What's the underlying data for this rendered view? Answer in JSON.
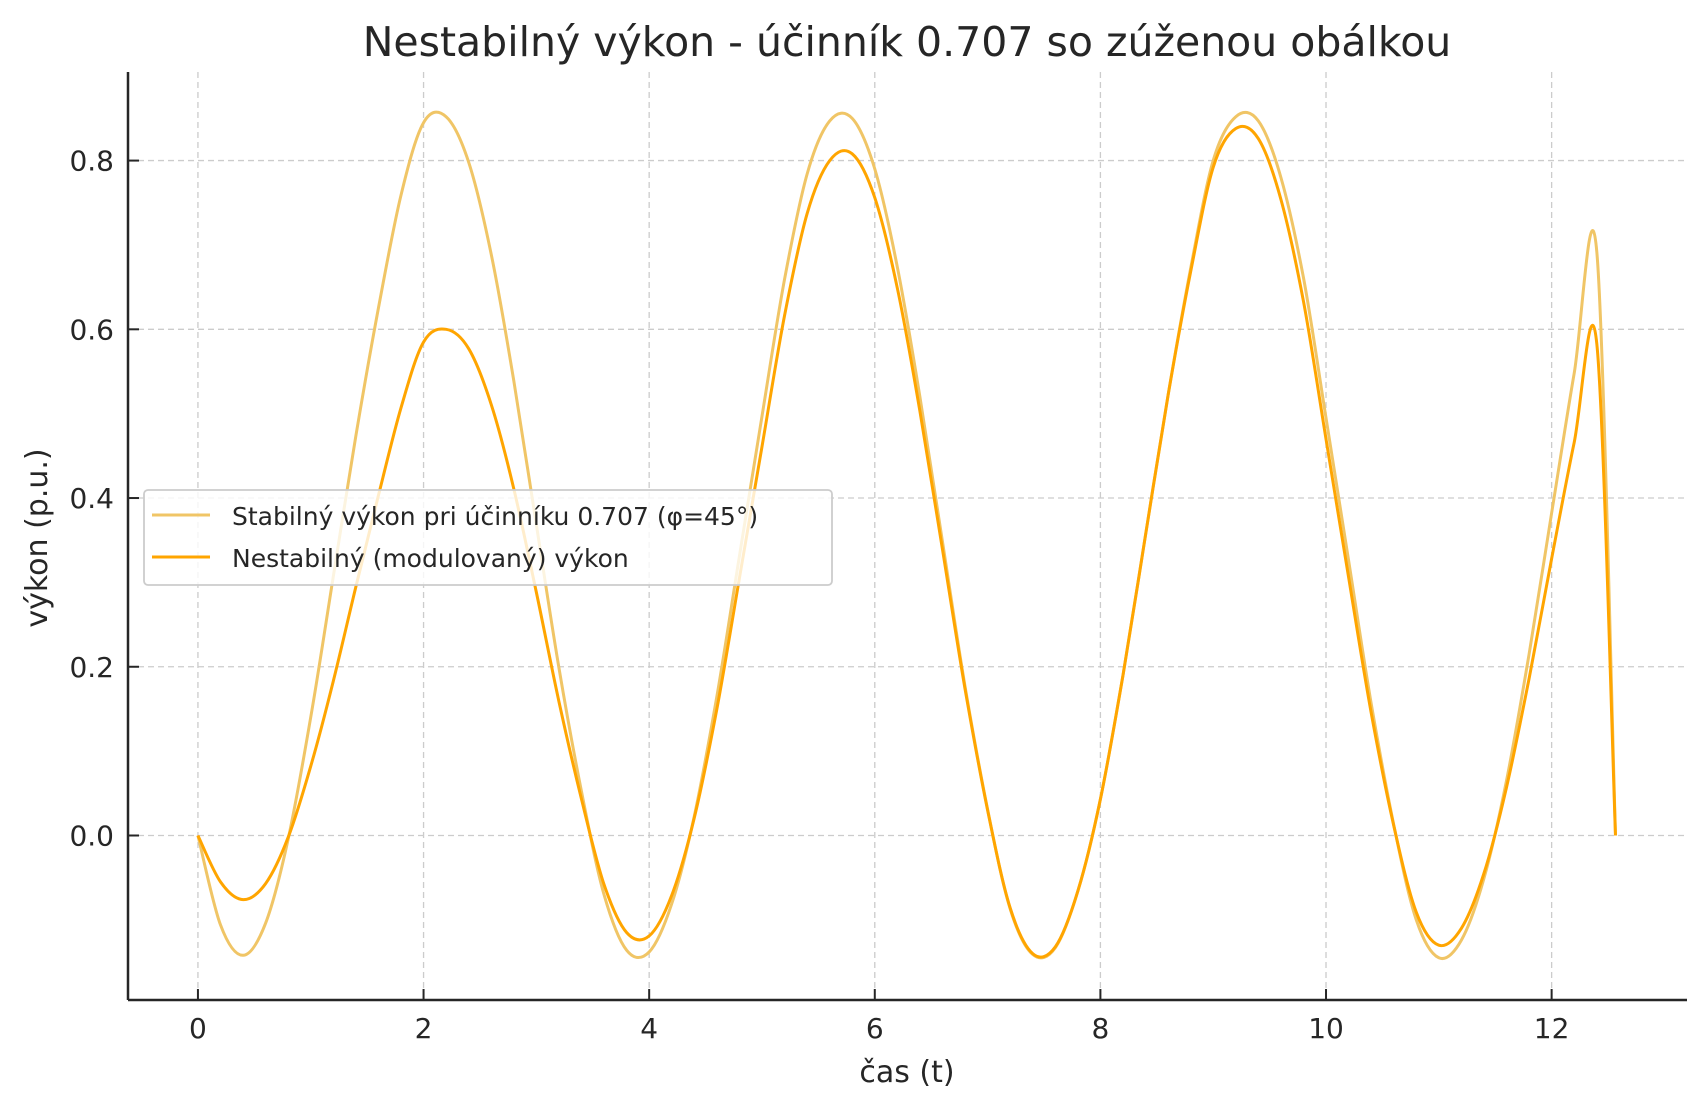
{
  "chart_data": {
    "type": "line",
    "title": "Nestabilný výkon - účinník 0.707 so zúženou obálkou",
    "xlabel": "čas (t)",
    "ylabel": "výkon (p.u.)",
    "xlim": [
      -0.62,
      13.2
    ],
    "ylim": [
      -0.195,
      0.905
    ],
    "xticks": [
      0,
      2,
      4,
      6,
      8,
      10,
      12
    ],
    "xtick_labels": [
      "0",
      "2",
      "4",
      "6",
      "8",
      "10",
      "12"
    ],
    "yticks": [
      0.0,
      0.2,
      0.4,
      0.6,
      0.8
    ],
    "ytick_labels": [
      "0.0",
      "0.2",
      "0.4",
      "0.6",
      "0.8"
    ],
    "grid": true,
    "grid_style": "dashed",
    "legend_position": "center left",
    "x_range": [
      0,
      12.566
    ],
    "series": [
      {
        "name": "Stabilný výkon pri účinníku 0.707 (φ=45°)",
        "color": "#F0C566",
        "linewidth": 2.5,
        "x": [
          0,
          0.2,
          0.4,
          0.6,
          0.8,
          1.0,
          1.2,
          1.4,
          1.6,
          1.8,
          2.0,
          2.2,
          2.4,
          2.6,
          2.8,
          3.0,
          3.2,
          3.4,
          3.6,
          3.8,
          4.0,
          4.2,
          4.4,
          4.6,
          4.8,
          5.0,
          5.2,
          5.4,
          5.6,
          5.8,
          6.0,
          6.2,
          6.4,
          6.6,
          6.8,
          7.0,
          7.2,
          7.4,
          7.6,
          7.8,
          8.0,
          8.2,
          8.4,
          8.6,
          8.8,
          9.0,
          9.2,
          9.4,
          9.6,
          9.8,
          10.0,
          10.2,
          10.4,
          10.6,
          10.8,
          11.0,
          11.2,
          11.4,
          11.6,
          11.8,
          12.0,
          12.2,
          12.4,
          12.566
        ],
        "values": [
          0.0,
          -0.106,
          -0.142,
          -0.104,
          -0.004,
          0.14,
          0.307,
          0.474,
          0.625,
          0.759,
          0.845,
          0.852,
          0.798,
          0.689,
          0.539,
          0.368,
          0.199,
          0.052,
          -0.07,
          -0.136,
          -0.138,
          -0.081,
          0.023,
          0.165,
          0.331,
          0.497,
          0.659,
          0.784,
          0.847,
          0.85,
          0.79,
          0.674,
          0.52,
          0.348,
          0.177,
          0.031,
          -0.087,
          -0.141,
          -0.133,
          -0.066,
          0.043,
          0.19,
          0.356,
          0.522,
          0.672,
          0.8,
          0.852,
          0.847,
          0.78,
          0.661,
          0.495,
          0.326,
          0.157,
          0.013,
          -0.1,
          -0.145,
          -0.124,
          -0.051,
          0.065,
          0.215,
          0.382,
          0.548,
          0.692,
          0.0
        ]
      },
      {
        "name": "Nestabilný (modulovaný) výkon",
        "color": "#FFA500",
        "linewidth": 2.5,
        "x": [
          0,
          0.2,
          0.4,
          0.6,
          0.8,
          1.0,
          1.2,
          1.4,
          1.6,
          1.8,
          2.0,
          2.2,
          2.4,
          2.6,
          2.8,
          3.0,
          3.2,
          3.4,
          3.6,
          3.8,
          4.0,
          4.2,
          4.4,
          4.6,
          4.8,
          5.0,
          5.2,
          5.4,
          5.6,
          5.8,
          6.0,
          6.2,
          6.4,
          6.6,
          6.8,
          7.0,
          7.2,
          7.4,
          7.6,
          7.8,
          8.0,
          8.2,
          8.4,
          8.6,
          8.8,
          9.0,
          9.2,
          9.4,
          9.6,
          9.8,
          10.0,
          10.2,
          10.4,
          10.6,
          10.8,
          11.0,
          11.2,
          11.4,
          11.6,
          11.8,
          12.0,
          12.2,
          12.4,
          12.566
        ],
        "values": [
          0.0,
          -0.055,
          -0.076,
          -0.057,
          -0.002,
          0.082,
          0.183,
          0.295,
          0.403,
          0.507,
          0.585,
          0.6,
          0.577,
          0.511,
          0.411,
          0.288,
          0.159,
          0.043,
          -0.058,
          -0.115,
          -0.119,
          -0.071,
          0.021,
          0.15,
          0.305,
          0.461,
          0.616,
          0.737,
          0.8,
          0.808,
          0.756,
          0.649,
          0.503,
          0.339,
          0.174,
          0.03,
          -0.086,
          -0.14,
          -0.132,
          -0.066,
          0.043,
          0.19,
          0.356,
          0.522,
          0.668,
          0.792,
          0.838,
          0.826,
          0.754,
          0.633,
          0.47,
          0.306,
          0.146,
          0.012,
          -0.091,
          -0.13,
          -0.11,
          -0.045,
          0.057,
          0.186,
          0.328,
          0.466,
          0.583,
          0.0
        ]
      }
    ]
  }
}
